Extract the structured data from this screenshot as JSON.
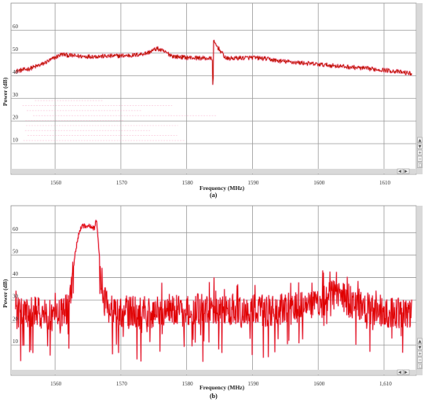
{
  "chart_data": [
    {
      "type": "line",
      "caption": "(a)",
      "xlabel": "Frequency (MHz)",
      "ylabel": "Power (dB)",
      "xlim": [
        1553.3,
        1614.9
      ],
      "ylim": [
        -3.5,
        72
      ],
      "x_ticks": [
        1560,
        1570,
        1580,
        1590,
        1600,
        1610
      ],
      "x_tick_labels": [
        "1560",
        "1570",
        "1580",
        "1590",
        "1600",
        "1610"
      ],
      "y_ticks": [
        10,
        20,
        30,
        40,
        50,
        60
      ],
      "y_tick_labels": [
        "10",
        "20",
        "30",
        "40",
        "50",
        "60"
      ],
      "grid": true,
      "color": "#e00000",
      "series": [
        {
          "x": [
            1554,
            1556,
            1558,
            1560,
            1561,
            1562,
            1564,
            1566,
            1568,
            1570,
            1572,
            1574,
            1575.5,
            1577,
            1578,
            1580,
            1582,
            1583.9,
            1584,
            1584.1,
            1586,
            1588,
            1590,
            1592,
            1594,
            1596,
            1598,
            1600,
            1602,
            1604,
            1606,
            1608,
            1610,
            1612,
            1614
          ],
          "y": [
            42,
            43,
            45,
            48,
            49.5,
            49,
            48.5,
            48.5,
            48.6,
            48.8,
            49,
            50,
            52,
            50,
            48.5,
            48,
            47.8,
            47.5,
            30,
            55,
            47.5,
            47.8,
            48,
            47.5,
            46.5,
            46,
            45.5,
            45,
            44.5,
            44,
            43.5,
            43,
            42.5,
            41.8,
            41
          ]
        }
      ]
    },
    {
      "type": "line",
      "caption": "(b)",
      "xlabel": "Frequency (MHz)",
      "ylabel": "Power (dB)",
      "xlim": [
        1553.3,
        1614.9
      ],
      "ylim": [
        -3.5,
        72
      ],
      "x_ticks": [
        1560,
        1570,
        1580,
        1590,
        1600,
        1610
      ],
      "x_tick_labels": [
        "1560",
        "1570",
        "1580",
        "1590",
        "1600",
        "1,610"
      ],
      "y_ticks": [
        10,
        20,
        30,
        40,
        50,
        60
      ],
      "y_tick_labels": [
        "10",
        "20",
        "30",
        "40",
        "50",
        "60"
      ],
      "grid": true,
      "color": "#e00000",
      "series": [
        {
          "x": [
            1554,
            1556,
            1558,
            1560,
            1562,
            1562.5,
            1563,
            1563.5,
            1564,
            1565,
            1566,
            1566.3,
            1566.6,
            1567,
            1567.5,
            1568,
            1570,
            1572,
            1575,
            1578,
            1580,
            1582,
            1585,
            1588,
            1590,
            1592,
            1595,
            1598,
            1600,
            1601,
            1602,
            1603,
            1604,
            1606,
            1608,
            1610,
            1612,
            1614
          ],
          "y": [
            24,
            25,
            24,
            23,
            26,
            35,
            50,
            58,
            63,
            63,
            62,
            66,
            55,
            40,
            30,
            26,
            25,
            25,
            25,
            26,
            25,
            26,
            25,
            24,
            26,
            25,
            26,
            27,
            28,
            30,
            33,
            32,
            30,
            28,
            26,
            25,
            24,
            25
          ]
        }
      ]
    }
  ]
}
